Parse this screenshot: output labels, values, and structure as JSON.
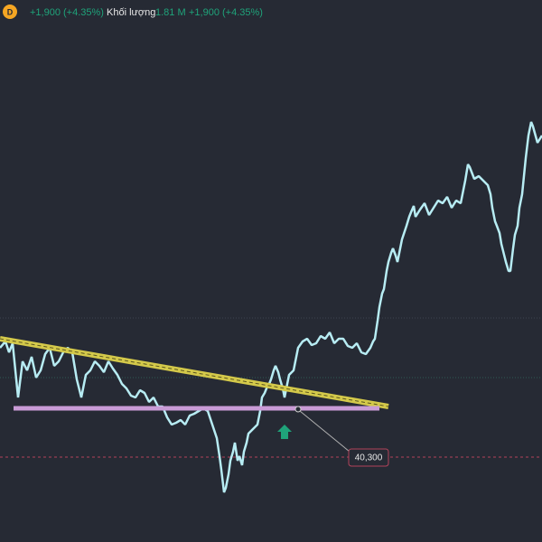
{
  "header": {
    "badge": "D",
    "change": "+1,900 (+4.35%)",
    "volume_label": "Khối lượng",
    "volume": "1.81 M",
    "volume_change": "+1,900 (+4.35%)"
  },
  "price_label": "40,300"
}
